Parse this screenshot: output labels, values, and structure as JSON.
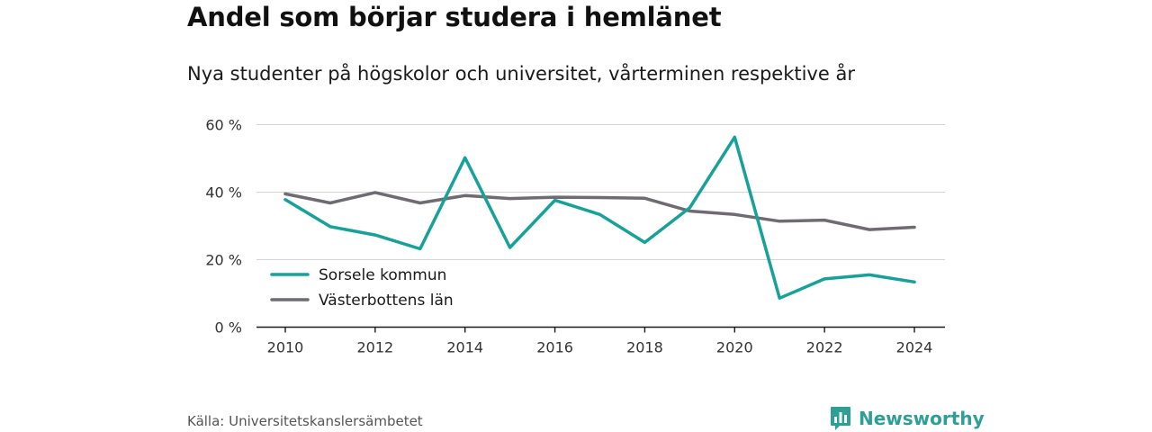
{
  "title": "Andel som börjar studera i hemlänet",
  "subtitle": "Nya studenter på högskolor och universitet, vårterminen respektive år",
  "source": "Källa: Universitetskanslersämbetet",
  "brand": {
    "name": "Newsworthy",
    "color": "#2e9f94",
    "icon": "bar-chart-speech-bubble-icon"
  },
  "chart_data": {
    "type": "line",
    "title": "Andel som börjar studera i hemlänet",
    "subtitle": "Nya studenter på högskolor och universitet, vårterminen respektive år",
    "x": [
      2010,
      2011,
      2012,
      2013,
      2014,
      2015,
      2016,
      2017,
      2018,
      2019,
      2020,
      2021,
      2022,
      2023,
      2024
    ],
    "xticks": [
      2010,
      2012,
      2014,
      2016,
      2018,
      2020,
      2022,
      2024
    ],
    "yticks": [
      0,
      20,
      40,
      60
    ],
    "ytick_labels": [
      "0 %",
      "20 %",
      "40 %",
      "60 %"
    ],
    "ylim": [
      0,
      60
    ],
    "xlim": [
      2009.4,
      2024.7
    ],
    "grid": "horizontal",
    "legend": "bottom-left",
    "series": [
      {
        "name": "Sorsele kommun",
        "color": "#17a198",
        "values": [
          37.8,
          29.8,
          27.3,
          23.2,
          50.2,
          23.6,
          37.6,
          33.4,
          25.1,
          35.4,
          56.3,
          8.6,
          14.3,
          15.5,
          13.4
        ]
      },
      {
        "name": "Västerbottens län",
        "color": "#6e6c72",
        "values": [
          39.5,
          36.8,
          39.9,
          36.8,
          39.0,
          38.1,
          38.5,
          38.4,
          38.2,
          34.4,
          33.4,
          31.4,
          31.7,
          28.9,
          29.6
        ]
      }
    ]
  }
}
